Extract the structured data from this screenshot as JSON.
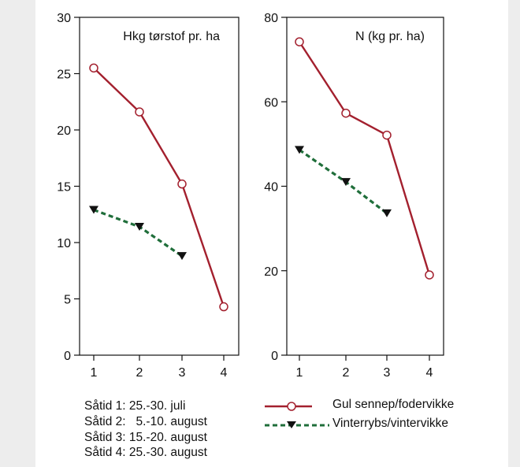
{
  "chart_data": [
    {
      "type": "line",
      "title": "Hkg tørstof pr. ha",
      "x": [
        1,
        2,
        3,
        4
      ],
      "ylim": [
        0,
        30
      ],
      "yticks": [
        0,
        5,
        10,
        15,
        20,
        25,
        30
      ],
      "series": [
        {
          "name": "Gul sennep/fodervikke",
          "x": [
            1,
            2,
            3,
            4
          ],
          "values": [
            25.5,
            21.6,
            15.2,
            4.3
          ],
          "color": "#a3202e",
          "marker": "open-circle",
          "style": "solid"
        },
        {
          "name": "Vinterrybs/vintervikke",
          "x": [
            1,
            2,
            3
          ],
          "values": [
            12.9,
            11.4,
            8.8
          ],
          "color": "#1f6e3a",
          "marker": "down-triangle",
          "style": "dashed"
        }
      ]
    },
    {
      "type": "line",
      "title": "N (kg pr. ha)",
      "x": [
        1,
        2,
        3,
        4
      ],
      "ylim": [
        0,
        80
      ],
      "yticks": [
        0,
        20,
        40,
        60,
        80
      ],
      "series": [
        {
          "name": "Gul sennep/fodervikke",
          "x": [
            1,
            2,
            3,
            4
          ],
          "values": [
            74.2,
            57.3,
            52.1,
            19.0
          ],
          "color": "#a3202e",
          "marker": "open-circle",
          "style": "solid"
        },
        {
          "name": "Vinterrybs/vintervikke",
          "x": [
            1,
            2,
            3
          ],
          "values": [
            48.6,
            41.0,
            33.6
          ],
          "color": "#1f6e3a",
          "marker": "down-triangle",
          "style": "dashed"
        }
      ]
    }
  ],
  "notes": [
    "Såtid 1: 25.-30. juli",
    "Såtid 2:   5.-10. august",
    "Såtid 3: 15.-20. august",
    "Såtid 4: 25.-30. august"
  ],
  "legend": [
    {
      "label": "Gul sennep/fodervikke",
      "color": "#a3202e",
      "marker": "open-circle",
      "style": "solid"
    },
    {
      "label": "Vinterrybs/vintervikke",
      "color": "#1f6e3a",
      "marker": "down-triangle",
      "style": "dashed"
    }
  ]
}
